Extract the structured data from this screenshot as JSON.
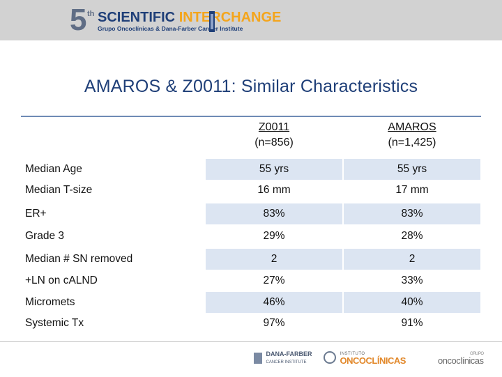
{
  "header": {
    "logo_number": "5",
    "logo_superscript": "th",
    "logo_title_part1": "SCIENTIFIC",
    "logo_title_part2": "INTERCHANGE",
    "logo_subtitle": "Grupo Oncoclínicas & Dana-Farber Cancer Institute"
  },
  "slide": {
    "title": "AMAROS & Z0011: Similar Characteristics"
  },
  "table": {
    "columns": [
      {
        "name": "Z0011",
        "n": "(n=856)"
      },
      {
        "name": "AMAROS",
        "n": "(n=1,425)"
      }
    ],
    "rows": [
      {
        "label": "Median Age",
        "z0011": "55 yrs",
        "amaros": "55 yrs"
      },
      {
        "label": "Median T-size",
        "z0011": "16 mm",
        "amaros": "17 mm"
      },
      {
        "label": "ER+",
        "z0011": "83%",
        "amaros": "83%"
      },
      {
        "label": "Grade 3",
        "z0011": "29%",
        "amaros": "28%"
      },
      {
        "label": "Median # SN removed",
        "z0011": "2",
        "amaros": "2"
      },
      {
        "label": "+LN on cALND",
        "z0011": "27%",
        "amaros": "33%"
      },
      {
        "label": "Micromets",
        "z0011": "46%",
        "amaros": "40%"
      },
      {
        "label": "Systemic Tx",
        "z0011": "97%",
        "amaros": "91%"
      }
    ]
  },
  "footer": {
    "logo1": "DANA-FARBER",
    "logo1_sub": "CANCER INSTITUTE",
    "logo2": "ONCOCLÍNICAS",
    "logo2_sub": "INSTITUTO",
    "logo3": "oncoclínicas",
    "logo3_sub": "GRUPO"
  },
  "colors": {
    "title_blue": "#1f3f78",
    "accent_orange": "#f4a51c",
    "row_shade": "#dce5f2",
    "header_gray": "#d2d2d2"
  }
}
